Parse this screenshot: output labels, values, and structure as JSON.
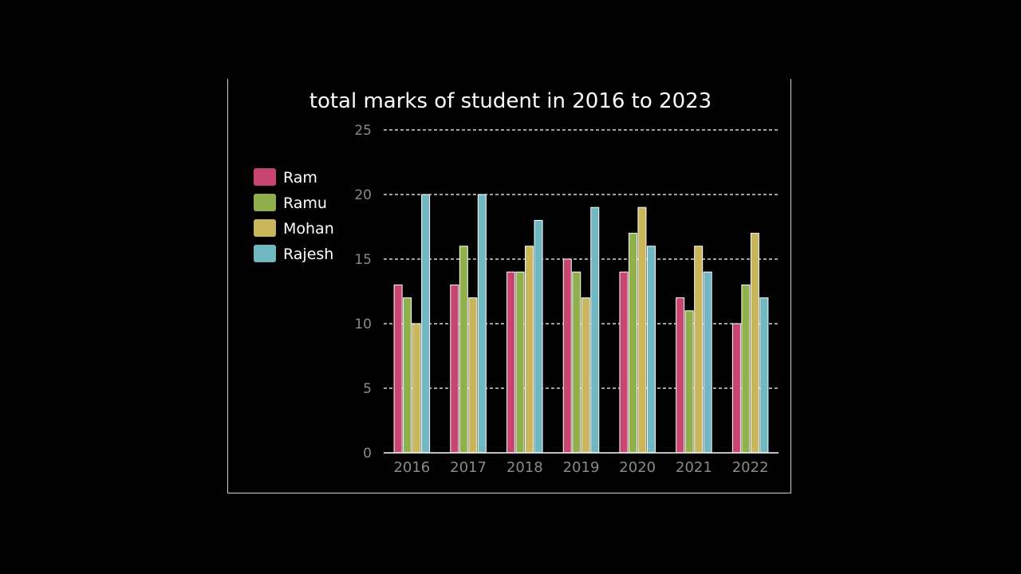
{
  "chart_data": {
    "type": "bar",
    "title": "total marks of student in 2016 to 2023",
    "categories": [
      "2016",
      "2017",
      "2018",
      "2019",
      "2020",
      "2021",
      "2022"
    ],
    "series": [
      {
        "name": "Ram",
        "color": "#c8456f",
        "values": [
          13,
          13,
          14,
          15,
          14,
          12,
          10
        ]
      },
      {
        "name": "Ramu",
        "color": "#8fb04a",
        "values": [
          12,
          16,
          14,
          14,
          17,
          11,
          13
        ]
      },
      {
        "name": "Mohan",
        "color": "#c9b65a",
        "values": [
          10,
          12,
          16,
          12,
          19,
          16,
          17
        ]
      },
      {
        "name": "Rajesh",
        "color": "#6fb7c1",
        "values": [
          20,
          20,
          18,
          19,
          16,
          14,
          12
        ]
      }
    ],
    "ylim": [
      0,
      25
    ],
    "yticks": [
      "0",
      "5",
      "10",
      "15",
      "20",
      "25"
    ],
    "grid": true,
    "legend_position": "left"
  }
}
